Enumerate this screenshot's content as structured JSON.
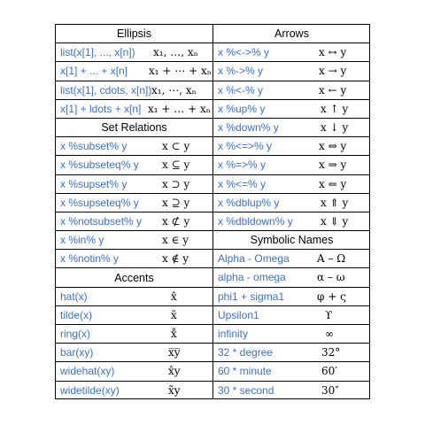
{
  "left": {
    "sections": [
      {
        "header": "Ellipsis",
        "rows": [
          {
            "code": "list(x[1], ..., x[n])",
            "symbol": "x₁, …, xₙ",
            "symx": 110
          },
          {
            "code": "x[1] + ... + x[n]",
            "symbol": "x₁ + ⋯ + xₙ",
            "symx": 105
          },
          {
            "code": "list(x[1], cdots, x[n])",
            "symbol": "x₁, ⋯, xₙ",
            "symx": 108
          },
          {
            "code": "x[1] + ldots + x[n]",
            "symbol": "x₁ + … + xₙ",
            "symx": 104
          }
        ]
      },
      {
        "header": "Set Relations",
        "rows": [
          {
            "code": "x %subset% y",
            "symbol": "x ⊂ y",
            "symx": 120
          },
          {
            "code": "x %subseteq% y",
            "symbol": "x ⊆ y",
            "symx": 120
          },
          {
            "code": "x %supset% y",
            "symbol": "x ⊃ y",
            "symx": 120
          },
          {
            "code": "x %supseteq% y",
            "symbol": "x ⊇ y",
            "symx": 120
          },
          {
            "code": "x %notsubset% y",
            "symbol": "x ⊄ y",
            "symx": 120
          },
          {
            "code": "x %in% y",
            "symbol": "x ∈ y",
            "symx": 120
          },
          {
            "code": "x %notin% y",
            "symbol": "x ∉ y",
            "symx": 120
          }
        ]
      },
      {
        "header": "Accents",
        "rows": [
          {
            "code": "hat(x)",
            "symbol": "x̂",
            "symx": 130
          },
          {
            "code": "tilde(x)",
            "symbol": "x̃",
            "symx": 130
          },
          {
            "code": "ring(x)",
            "symbol": "x̊",
            "symx": 130
          },
          {
            "code": "bar(xy)",
            "symbol": "x̅y̅",
            "symx": 127
          },
          {
            "code": "widehat(xy)",
            "symbol": "x̂y",
            "symx": 127
          },
          {
            "code": "widetilde(xy)",
            "symbol": "x̃y",
            "symx": 127
          }
        ]
      }
    ]
  },
  "right": {
    "sections": [
      {
        "header": "Arrows",
        "rows": [
          {
            "code": "x %<->% y",
            "symbol": "x ↔ y",
            "symx": 119
          },
          {
            "code": "x %->% y",
            "symbol": "x → y",
            "symx": 119
          },
          {
            "code": "x %<-% y",
            "symbol": "x ← y",
            "symx": 119
          },
          {
            "code": "x %up% y",
            "symbol": "x ↑ y",
            "symx": 121
          },
          {
            "code": "x %down% y",
            "symbol": "x ↓ y",
            "symx": 121
          },
          {
            "code": "x %<=>% y",
            "symbol": "x ⇔ y",
            "symx": 119
          },
          {
            "code": "x %=>% y",
            "symbol": "x ⇒ y",
            "symx": 119
          },
          {
            "code": "x %<=% y",
            "symbol": "x ⇐ y",
            "symx": 119
          },
          {
            "code": "x %dblup% y",
            "symbol": "x ⇑ y",
            "symx": 121
          },
          {
            "code": "x %dbldown% y",
            "symbol": "x ⇓ y",
            "symx": 121
          }
        ]
      },
      {
        "header": "Symbolic Names",
        "rows": [
          {
            "code": "Alpha - Omega",
            "symbol": "Α – Ω",
            "symx": 117
          },
          {
            "code": "alpha - omega",
            "symbol": "α – ω",
            "symx": 117
          },
          {
            "code": "phi1 + sigma1",
            "symbol": "φ + ς",
            "symx": 117
          },
          {
            "code": "Upsilon1",
            "symbol": "ϒ",
            "symx": 126
          },
          {
            "code": "infinity",
            "symbol": "∞",
            "symx": 126
          },
          {
            "code": "32 * degree",
            "symbol": "32°",
            "symx": 122
          },
          {
            "code": "60 * minute",
            "symbol": "60′",
            "symx": 122
          },
          {
            "code": "30 * second",
            "symbol": "30″",
            "symx": 122
          }
        ]
      }
    ]
  },
  "colors": {
    "code": "#3b6fd0",
    "text": "#000000",
    "border": "#000000"
  }
}
